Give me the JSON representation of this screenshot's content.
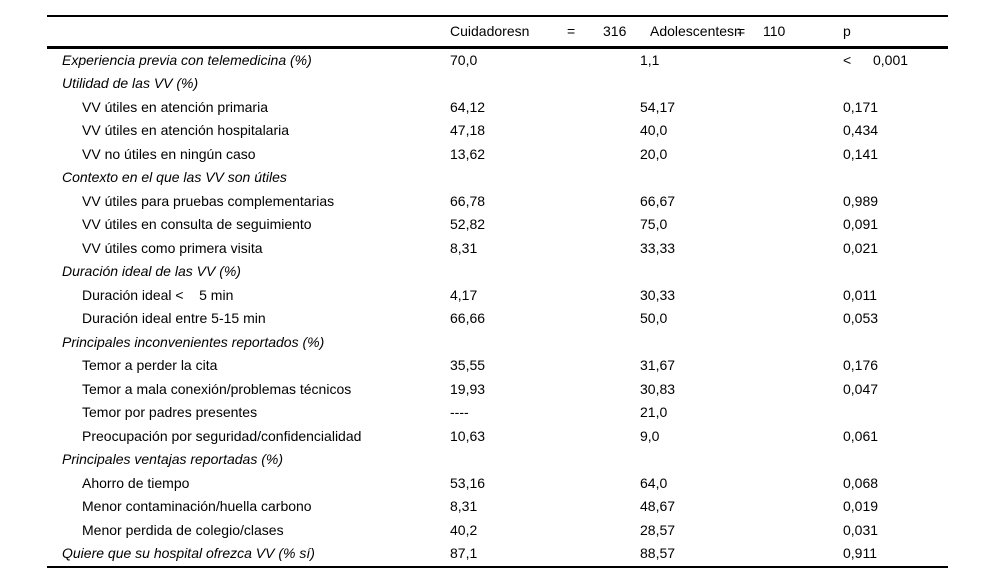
{
  "table": {
    "header": {
      "col1": {
        "name": "Cuidadoresn",
        "eq": "=",
        "n": "316"
      },
      "col2": {
        "name": "Adolescentesn",
        "eq": "=",
        "n": "110"
      },
      "p_label": "p"
    },
    "rows": [
      {
        "label": "Experiencia previa con telemedicina (%)",
        "italic": true,
        "indent": false,
        "v1": "70,0",
        "v2": "1,1",
        "p_prefix": "<",
        "p": "0,001"
      },
      {
        "label": "Utilidad de las VV (%)",
        "italic": true,
        "indent": false,
        "v1": "",
        "v2": "",
        "p_prefix": "",
        "p": ""
      },
      {
        "label": "VV útiles en atención primaria",
        "italic": false,
        "indent": true,
        "v1": "64,12",
        "v2": "54,17",
        "p_prefix": "",
        "p": "0,171"
      },
      {
        "label": "VV útiles en atención hospitalaria",
        "italic": false,
        "indent": true,
        "v1": "47,18",
        "v2": "40,0",
        "p_prefix": "",
        "p": "0,434"
      },
      {
        "label": "VV no útiles en ningún caso",
        "italic": false,
        "indent": true,
        "v1": "13,62",
        "v2": "20,0",
        "p_prefix": "",
        "p": "0,141"
      },
      {
        "label": "Contexto en el que las VV son útiles",
        "italic": true,
        "indent": false,
        "v1": "",
        "v2": "",
        "p_prefix": "",
        "p": ""
      },
      {
        "label": "VV útiles para pruebas complementarias",
        "italic": false,
        "indent": true,
        "v1": "66,78",
        "v2": "66,67",
        "p_prefix": "",
        "p": "0,989"
      },
      {
        "label": "VV útiles en consulta de seguimiento",
        "italic": false,
        "indent": true,
        "v1": "52,82",
        "v2": "75,0",
        "p_prefix": "",
        "p": "0,091"
      },
      {
        "label": "VV útiles como primera visita",
        "italic": false,
        "indent": true,
        "v1": "8,31",
        "v2": "33,33",
        "p_prefix": "",
        "p": "0,021"
      },
      {
        "label": "Duración ideal de las VV (%)",
        "italic": true,
        "indent": false,
        "v1": "",
        "v2": "",
        "p_prefix": "",
        "p": ""
      },
      {
        "label": "Duración ideal <    5 min",
        "italic": false,
        "indent": true,
        "v1": "4,17",
        "v2": "30,33",
        "p_prefix": "",
        "p": "0,011"
      },
      {
        "label": "Duración ideal entre 5-15 min",
        "italic": false,
        "indent": true,
        "v1": "66,66",
        "v2": "50,0",
        "p_prefix": "",
        "p": "0,053"
      },
      {
        "label": "Principales inconvenientes reportados (%)",
        "italic": true,
        "indent": false,
        "v1": "",
        "v2": "",
        "p_prefix": "",
        "p": ""
      },
      {
        "label": "Temor a perder la cita",
        "italic": false,
        "indent": true,
        "v1": "35,55",
        "v2": "31,67",
        "p_prefix": "",
        "p": "0,176"
      },
      {
        "label": "Temor a mala conexión/problemas técnicos",
        "italic": false,
        "indent": true,
        "v1": "19,93",
        "v2": "30,83",
        "p_prefix": "",
        "p": "0,047"
      },
      {
        "label": "Temor por padres presentes",
        "italic": false,
        "indent": true,
        "v1": "----",
        "v2": "21,0",
        "p_prefix": "",
        "p": ""
      },
      {
        "label": "Preocupación por seguridad/confidencialidad",
        "italic": false,
        "indent": true,
        "v1": "10,63",
        "v2": "9,0",
        "p_prefix": "",
        "p": "0,061"
      },
      {
        "label": "Principales ventajas reportadas (%)",
        "italic": true,
        "indent": false,
        "v1": "",
        "v2": "",
        "p_prefix": "",
        "p": ""
      },
      {
        "label": "Ahorro de tiempo",
        "italic": false,
        "indent": true,
        "v1": "53,16",
        "v2": "64,0",
        "p_prefix": "",
        "p": "0,068"
      },
      {
        "label": "Menor contaminación/huella carbono",
        "italic": false,
        "indent": true,
        "v1": "8,31",
        "v2": "48,67",
        "p_prefix": "",
        "p": "0,019"
      },
      {
        "label": "Menor perdida de colegio/clases",
        "italic": false,
        "indent": true,
        "v1": "40,2",
        "v2": "28,57",
        "p_prefix": "",
        "p": "0,031"
      },
      {
        "label": "Quiere que su hospital ofrezca VV (% sí)",
        "italic": true,
        "indent": false,
        "v1": "87,1",
        "v2": "88,57",
        "p_prefix": "",
        "p": "0,911"
      }
    ]
  }
}
